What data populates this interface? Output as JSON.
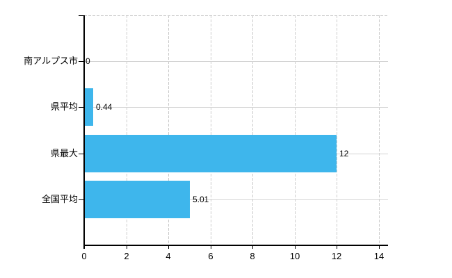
{
  "chart_data": {
    "type": "bar",
    "orientation": "horizontal",
    "title": "",
    "xlabel": "",
    "ylabel": "",
    "categories": [
      "南アルプス市",
      "県平均",
      "県最大",
      "全国平均"
    ],
    "values": [
      0,
      0.44,
      12,
      5.01
    ],
    "value_labels": [
      "0",
      "0.44",
      "12",
      "5.01"
    ],
    "x_ticks": [
      0,
      2,
      4,
      6,
      8,
      10,
      12,
      14
    ],
    "x_tick_labels": [
      "0",
      "2",
      "4",
      "6",
      "8",
      "10",
      "12",
      "14"
    ],
    "xlim": [
      0,
      14.4
    ],
    "grid": "on",
    "legend": "none",
    "bar_color": "#3eb6ec",
    "h_grid_color": "#d4d4d4",
    "v_grid_color": "#cdcdcd",
    "axis_color": "#000000",
    "text_color": "#000000",
    "background_color": "#ffffff"
  }
}
